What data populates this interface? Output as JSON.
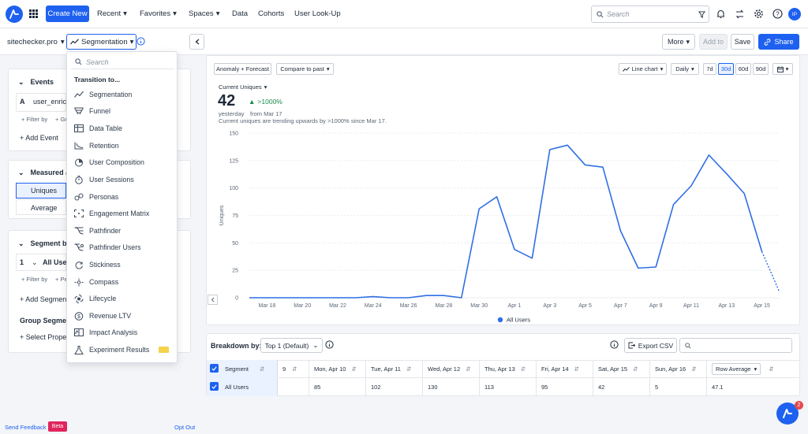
{
  "nav": {
    "create_new": "Create New",
    "recent": "Recent",
    "favorites": "Favorites",
    "spaces": "Spaces",
    "data": "Data",
    "cohorts": "Cohorts",
    "user_lookup": "User Look-Up",
    "search_placeholder": "Search",
    "avatar_initials": "IP"
  },
  "header": {
    "project": "sitechecker.pro",
    "chart_type": "Segmentation",
    "more": "More",
    "add_to": "Add to",
    "save": "Save",
    "share": "Share"
  },
  "left": {
    "events_title": "Events",
    "event_letter": "A",
    "event_name": "user_enrich",
    "filter_by": "+ Filter by",
    "group_by_partial": "+ Gr",
    "add_event": "+ Add Event",
    "measured_as_partial": "Measured a",
    "measure_uniques": "Uniques",
    "measure_average": "Average",
    "segment_by_partial": "Segment by",
    "segment_index": "1",
    "segment_name_partial": "All User",
    "perform_partial": "+ Pe",
    "add_segment_partial": "+ Add Segment",
    "group_segment_partial": "Group Segment",
    "select_property_partial": "+ Select Proper",
    "send_feedback": "Send Feedback",
    "beta": "Beta",
    "opt_out": "Opt Out"
  },
  "dropdown": {
    "search_placeholder": "Search",
    "heading": "Transition to...",
    "items": [
      {
        "label": "Segmentation"
      },
      {
        "label": "Funnel"
      },
      {
        "label": "Data Table"
      },
      {
        "label": "Retention"
      },
      {
        "label": "User Composition"
      },
      {
        "label": "User Sessions"
      },
      {
        "label": "Personas"
      },
      {
        "label": "Engagement Matrix"
      },
      {
        "label": "Pathfinder"
      },
      {
        "label": "Pathfinder Users"
      },
      {
        "label": "Stickiness"
      },
      {
        "label": "Compass"
      },
      {
        "label": "Lifecycle"
      },
      {
        "label": "Revenue LTV"
      },
      {
        "label": "Impact Analysis"
      },
      {
        "label": "Experiment Results"
      }
    ]
  },
  "chart_controls": {
    "anomaly": "Anomaly + Forecast",
    "compare": "Compare to past",
    "chart_kind": "Line chart",
    "interval": "Daily",
    "ranges": [
      "7d",
      "30d",
      "60d",
      "90d"
    ],
    "active_range": "30d"
  },
  "summary": {
    "metric_label": "Current Uniques",
    "value": "42",
    "change": ">1000%",
    "period": "yesterday",
    "compare_from": "from Mar 17",
    "insight": "Current uniques are trending upwards by >1000% since Mar 17."
  },
  "chart_data": {
    "type": "line",
    "title": "",
    "xlabel": "",
    "ylabel": "Uniques",
    "ylim": [
      0,
      150
    ],
    "yticks": [
      0,
      25,
      50,
      75,
      100,
      125,
      150
    ],
    "x": [
      "Mar 17",
      "Mar 18",
      "Mar 19",
      "Mar 20",
      "Mar 21",
      "Mar 22",
      "Mar 23",
      "Mar 24",
      "Mar 25",
      "Mar 26",
      "Mar 27",
      "Mar 28",
      "Mar 29",
      "Mar 30",
      "Mar 31",
      "Apr 1",
      "Apr 2",
      "Apr 3",
      "Apr 4",
      "Apr 5",
      "Apr 6",
      "Apr 7",
      "Apr 8",
      "Apr 9",
      "Apr 10",
      "Apr 11",
      "Apr 12",
      "Apr 13",
      "Apr 14",
      "Apr 15",
      "Apr 16"
    ],
    "xtick_labels": [
      "Mar 18",
      "Mar 20",
      "Mar 22",
      "Mar 24",
      "Mar 26",
      "Mar 28",
      "Mar 30",
      "Apr 1",
      "Apr 3",
      "Apr 5",
      "Apr 7",
      "Apr 9",
      "Apr 11",
      "Apr 13",
      "Apr 15"
    ],
    "series": [
      {
        "name": "All Users",
        "color": "#2f6fe4",
        "values": [
          0,
          0,
          0,
          0,
          0,
          0,
          0,
          1,
          0,
          0,
          2,
          2,
          0,
          81,
          92,
          44,
          36,
          135,
          139,
          121,
          119,
          61,
          27,
          28,
          85,
          102,
          130,
          113,
          95,
          42,
          5
        ],
        "projected_from_index": 29
      }
    ],
    "legend": "bottom"
  },
  "breakdown": {
    "label": "Breakdown by:",
    "selector": "Top 1 (Default)",
    "export": "Export CSV",
    "columns": [
      "Segment",
      "9",
      "Mon, Apr 10",
      "Tue, Apr 11",
      "Wed, Apr 12",
      "Thu, Apr 13",
      "Fri, Apr 14",
      "Sat, Apr 15",
      "Sun, Apr 16",
      "Row Average"
    ],
    "rows": [
      {
        "segment": "All Users",
        "values": [
          "",
          "85",
          "102",
          "130",
          "113",
          "95",
          "42",
          "5",
          "47.1"
        ]
      }
    ]
  },
  "notifications": {
    "count": "2"
  }
}
